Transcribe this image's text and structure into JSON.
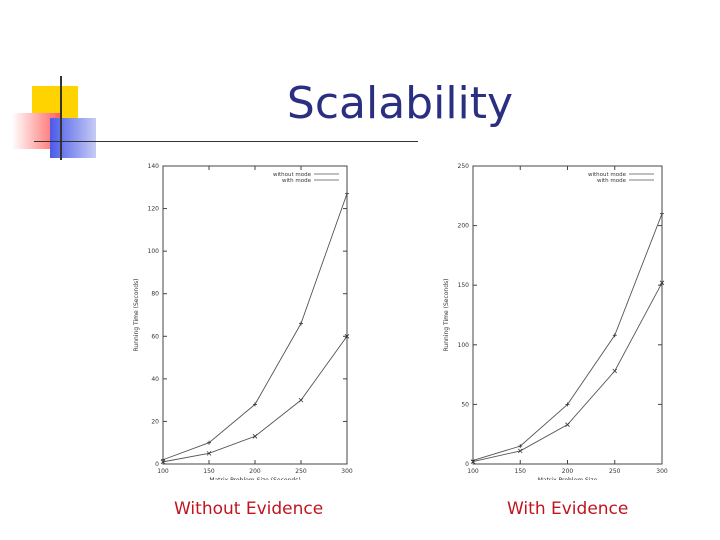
{
  "slide": {
    "title": "Scalability",
    "captions": [
      "Without Evidence",
      "With Evidence"
    ]
  },
  "colors": {
    "title": "#2b2f82",
    "caption": "#c0151f",
    "deco_yellow": "#ffd300",
    "deco_red": "#ff5a5a",
    "deco_blue": "#4a5ae8"
  },
  "chart_data": [
    {
      "type": "line",
      "title": "",
      "xlabel": "Matrix Problem Size (Seconds)",
      "ylabel": "Running Time (Seconds)",
      "x": [
        100,
        150,
        200,
        250,
        300
      ],
      "xlim": [
        100,
        300
      ],
      "ylim": [
        0,
        140
      ],
      "xticks": [
        100,
        150,
        200,
        250,
        300
      ],
      "yticks": [
        0,
        20,
        40,
        60,
        80,
        100,
        120,
        140
      ],
      "legend": "top-right",
      "series": [
        {
          "name": "without mode",
          "marker": "+",
          "values": [
            2,
            10,
            28,
            66,
            127
          ]
        },
        {
          "name": "with mode",
          "marker": "x",
          "values": [
            1,
            5,
            13,
            30,
            60
          ]
        }
      ]
    },
    {
      "type": "line",
      "title": "",
      "xlabel": "Matrix Problem Size",
      "ylabel": "Running Time (Seconds)",
      "x": [
        100,
        150,
        200,
        250,
        300
      ],
      "xlim": [
        100,
        300
      ],
      "ylim": [
        0,
        250
      ],
      "xticks": [
        100,
        150,
        200,
        250,
        300
      ],
      "yticks": [
        0,
        50,
        100,
        150,
        200,
        250
      ],
      "legend": "top-right",
      "series": [
        {
          "name": "without mode",
          "marker": "+",
          "values": [
            3,
            15,
            50,
            108,
            210
          ]
        },
        {
          "name": "with mode",
          "marker": "x",
          "values": [
            2,
            11,
            33,
            78,
            152
          ]
        }
      ]
    }
  ]
}
